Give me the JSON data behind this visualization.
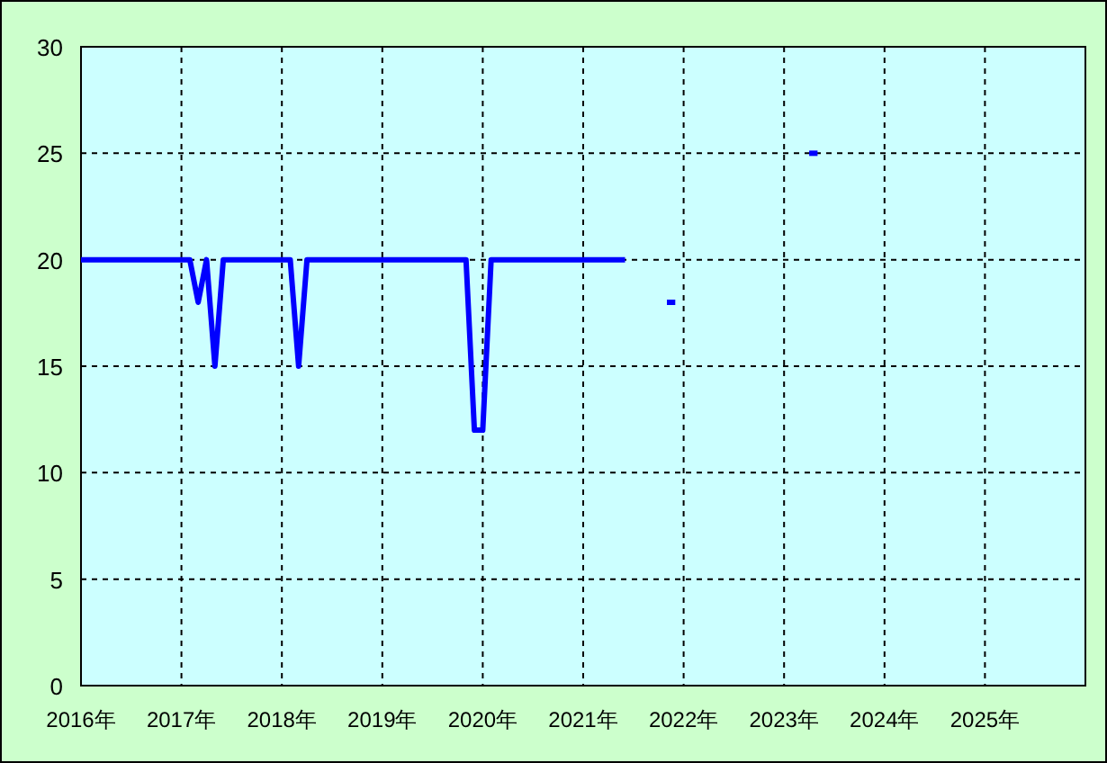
{
  "chart_data": {
    "type": "line",
    "series": [
      {
        "color": "#0000ff",
        "x": [
          "2016-01",
          "2016-02",
          "2016-03",
          "2016-04",
          "2016-05",
          "2016-06",
          "2016-07",
          "2016-08",
          "2016-09",
          "2016-10",
          "2016-11",
          "2016-12",
          "2017-01",
          "2017-02",
          "2017-03",
          "2017-04",
          "2017-05",
          "2017-06",
          "2017-07",
          "2017-08",
          "2017-09",
          "2017-10",
          "2017-11",
          "2017-12",
          "2018-01",
          "2018-02",
          "2018-03",
          "2018-04",
          "2018-05",
          "2018-06",
          "2018-07",
          "2018-08",
          "2018-09",
          "2018-10",
          "2018-11",
          "2018-12",
          "2019-01",
          "2019-02",
          "2019-03",
          "2019-04",
          "2019-05",
          "2019-06",
          "2019-07",
          "2019-08",
          "2019-09",
          "2019-10",
          "2019-11",
          "2019-12",
          "2020-01",
          "2020-02",
          "2020-03",
          "2020-04",
          "2020-05",
          "2020-06",
          "2020-07",
          "2020-08",
          "2020-09",
          "2020-10",
          "2020-11",
          "2020-12",
          "2021-01",
          "2021-02",
          "2021-03",
          "2021-04",
          "2021-05",
          "2021-06"
        ],
        "values": [
          20,
          20,
          20,
          20,
          20,
          20,
          20,
          20,
          20,
          20,
          20,
          20,
          20,
          20,
          18,
          20,
          15,
          20,
          20,
          20,
          20,
          20,
          20,
          20,
          20,
          20,
          15,
          20,
          20,
          20,
          20,
          20,
          20,
          20,
          20,
          20,
          20,
          20,
          20,
          20,
          20,
          20,
          20,
          20,
          20,
          20,
          20,
          12,
          12,
          20,
          20,
          20,
          20,
          20,
          20,
          20,
          20,
          20,
          20,
          20,
          20,
          20,
          20,
          20,
          20,
          20
        ]
      },
      {
        "color": "#0000ff",
        "x": [
          "2021-11",
          "2021-12"
        ],
        "values": [
          18,
          18
        ]
      },
      {
        "color": "#0000ff",
        "x": [
          "2023-04",
          "2023-05"
        ],
        "values": [
          25,
          25
        ]
      }
    ],
    "xlim": [
      "2016-01",
      "2026-01"
    ],
    "xticks": [
      {
        "value": "2016-01",
        "label": "2016年"
      },
      {
        "value": "2017-01",
        "label": "2017年"
      },
      {
        "value": "2018-01",
        "label": "2018年"
      },
      {
        "value": "2019-01",
        "label": "2019年"
      },
      {
        "value": "2020-01",
        "label": "2020年"
      },
      {
        "value": "2021-01",
        "label": "2021年"
      },
      {
        "value": "2022-01",
        "label": "2022年"
      },
      {
        "value": "2023-01",
        "label": "2023年"
      },
      {
        "value": "2024-01",
        "label": "2024年"
      },
      {
        "value": "2025-01",
        "label": "2025年"
      }
    ],
    "ylim": [
      0,
      30
    ],
    "yticks": [
      0,
      5,
      10,
      15,
      20,
      25,
      30
    ],
    "grid": true,
    "marker": "none",
    "line_style": "solid"
  }
}
